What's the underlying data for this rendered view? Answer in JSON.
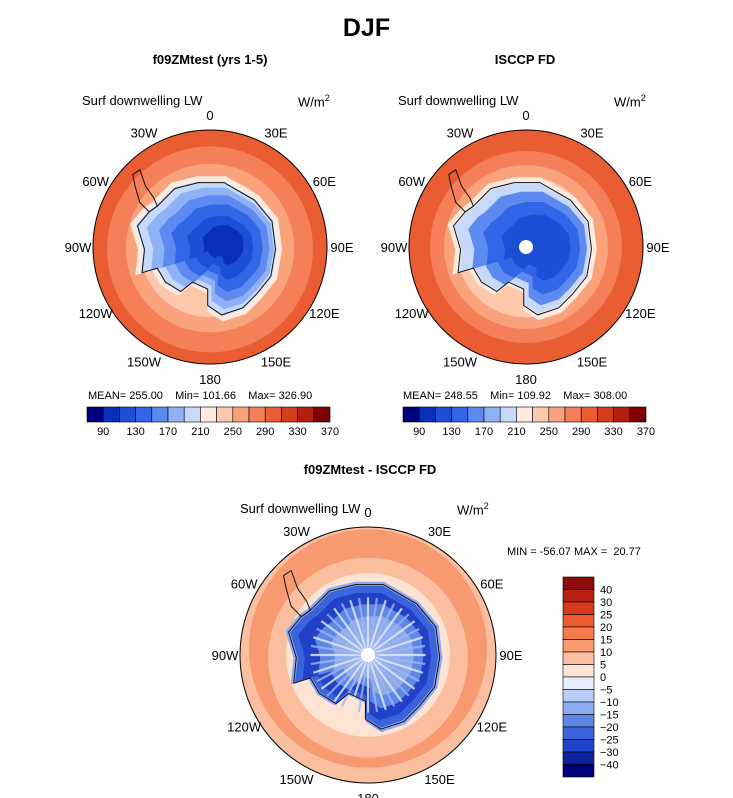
{
  "title": "DJF",
  "panels": [
    {
      "title": "f09ZMtest (yrs 1-5)",
      "variable": "Surf downwelling LW",
      "units": "W/m",
      "units_exp": "2",
      "stats": {
        "mean_label": "MEAN=",
        "mean": "255.00",
        "min_label": "Min=",
        "min": "101.66",
        "max_label": "Max=",
        "max": "326.90"
      }
    },
    {
      "title": "ISCCP FD",
      "variable": "Surf downwelling LW",
      "units": "W/m",
      "units_exp": "2",
      "stats": {
        "mean_label": "MEAN=",
        "mean": "248.55",
        "min_label": "Min=",
        "min": "109.92",
        "max_label": "Max=",
        "max": "308.00"
      }
    },
    {
      "title": "f09ZMtest - ISCCP FD",
      "variable": "Surf downwelling LW",
      "units": "W/m",
      "units_exp": "2",
      "minmax_text": "MIN = -56.07 MAX =  20.77"
    }
  ],
  "lon_labels": [
    "0",
    "30E",
    "60E",
    "90E",
    "120E",
    "150E",
    "180",
    "150W",
    "120W",
    "90W",
    "60W",
    "30W"
  ],
  "colorbar_main": {
    "labels": [
      "90",
      "130",
      "170",
      "210",
      "250",
      "290",
      "330",
      "370"
    ],
    "colors": [
      "#00007f",
      "#0a2fb8",
      "#1d4fd6",
      "#3366e6",
      "#5d8af0",
      "#8fb1f5",
      "#c6d9fa",
      "#fdebe1",
      "#fcc9ad",
      "#f9a27c",
      "#f47f58",
      "#ea5d33",
      "#d63c1c",
      "#b3200e",
      "#7f0000"
    ]
  },
  "colorbar_diff": {
    "labels": [
      "40",
      "30",
      "25",
      "20",
      "15",
      "10",
      "5",
      "0",
      "−5",
      "−10",
      "−15",
      "−20",
      "−25",
      "−30",
      "−40"
    ],
    "colors": [
      "#8e0b0b",
      "#b82014",
      "#d93a1c",
      "#ef5a2c",
      "#f47b4b",
      "#f79a71",
      "#fbbf9f",
      "#fde3d4",
      "#e6eefc",
      "#b9cdf6",
      "#8daaef",
      "#5e86e6",
      "#3a63dc",
      "#2142c8",
      "#0b249e",
      "#00007f"
    ]
  },
  "chart_data": [
    {
      "type": "heatmap",
      "projection": "south polar stereographic",
      "title": "f09ZMtest (yrs 1-5)",
      "variable": "Surf downwelling LW",
      "units": "W/m2",
      "mean": 255.0,
      "min": 101.66,
      "max": 326.9,
      "contour_levels": [
        90,
        100,
        110,
        120,
        130,
        140,
        150,
        160,
        170,
        180,
        190,
        200,
        210,
        220,
        230,
        240,
        250,
        260,
        270,
        280,
        290,
        300,
        310,
        320,
        330,
        340,
        350,
        360,
        370
      ]
    },
    {
      "type": "heatmap",
      "projection": "south polar stereographic",
      "title": "ISCCP FD",
      "variable": "Surf downwelling LW",
      "units": "W/m2",
      "mean": 248.55,
      "min": 109.92,
      "max": 308.0,
      "contour_levels": [
        90,
        100,
        110,
        120,
        130,
        140,
        150,
        160,
        170,
        180,
        190,
        200,
        210,
        220,
        230,
        240,
        250,
        260,
        270,
        280,
        290,
        300,
        310,
        320,
        330,
        340,
        350,
        360,
        370
      ]
    },
    {
      "type": "heatmap",
      "projection": "south polar stereographic",
      "title": "f09ZMtest - ISCCP FD",
      "variable": "Surf downwelling LW",
      "units": "W/m2",
      "min": -56.07,
      "max": 20.77,
      "contour_levels": [
        -40,
        -30,
        -25,
        -20,
        -15,
        -10,
        -5,
        0,
        5,
        10,
        15,
        20,
        25,
        30,
        40
      ]
    }
  ]
}
